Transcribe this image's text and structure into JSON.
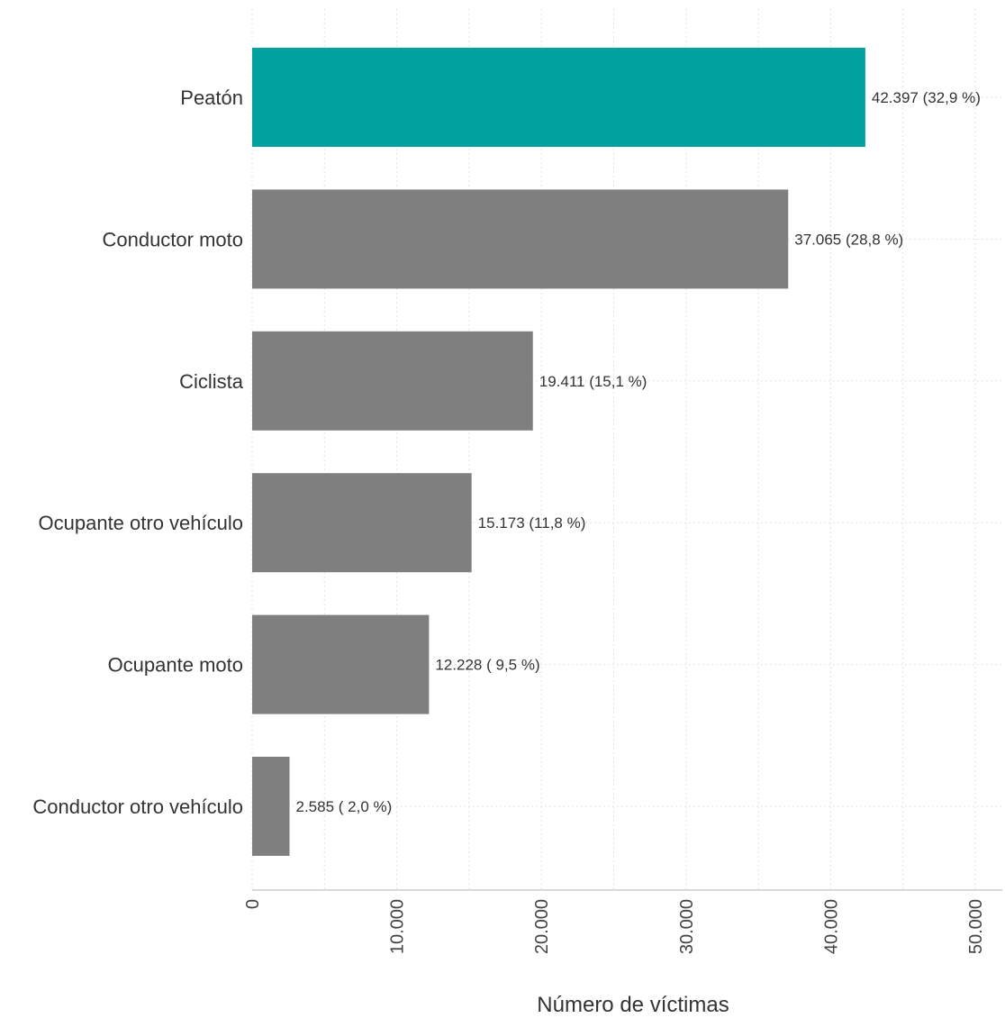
{
  "chart_data": {
    "type": "bar",
    "orientation": "horizontal",
    "categories": [
      "Peatón",
      "Conductor moto",
      "Ciclista",
      "Ocupante otro vehículo",
      "Ocupante moto",
      "Conductor otro vehículo"
    ],
    "values": [
      42397,
      37065,
      19411,
      15173,
      12228,
      2585
    ],
    "data_labels": [
      "42.397 (32,9 %)",
      "37.065 (28,8 %)",
      "19.411 (15,1 %)",
      "15.173 (11,8 %)",
      "12.228 ( 9,5 %)",
      "2.585 ( 2,0 %)"
    ],
    "highlight_index": 0,
    "colors": {
      "highlight": "#00a19f",
      "default": "#7f7f7f",
      "grid": "#e3e3e3",
      "axis": "#cccccc"
    },
    "xlabel": "Número de víctimas",
    "xlim": [
      0,
      50000
    ],
    "xticks": [
      0,
      10000,
      20000,
      30000,
      40000,
      50000
    ],
    "xtick_labels": [
      "0",
      "10.000",
      "20.000",
      "30.000",
      "40.000",
      "50.000"
    ],
    "grid": true,
    "legend": "none"
  }
}
